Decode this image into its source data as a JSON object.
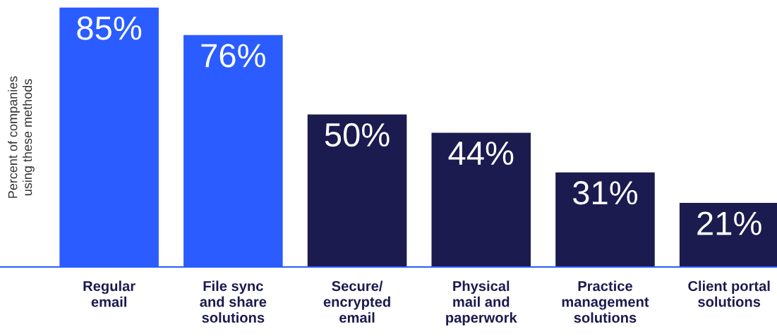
{
  "chart_data": {
    "type": "bar",
    "ylabel": "Percent of companies\nusing these methods",
    "categories": [
      "Regular\nemail",
      "File sync\nand share\nsolutions",
      "Secure/\nencrypted\nemail",
      "Physical\nmail and\npaperwork",
      "Practice\nmanagement\nsolutions",
      "Client portal\nsolutions"
    ],
    "values": [
      85,
      76,
      50,
      44,
      31,
      21
    ],
    "colors": [
      "#2a5cff",
      "#2a5cff",
      "#1b1b4f",
      "#1b1b4f",
      "#1b1b4f",
      "#1b1b4f"
    ],
    "value_labels": [
      "85%",
      "76%",
      "50%",
      "44%",
      "31%",
      "21%"
    ],
    "ylim": [
      0,
      85.2
    ],
    "tick_labels": "x",
    "grid": false,
    "legend": false
  }
}
